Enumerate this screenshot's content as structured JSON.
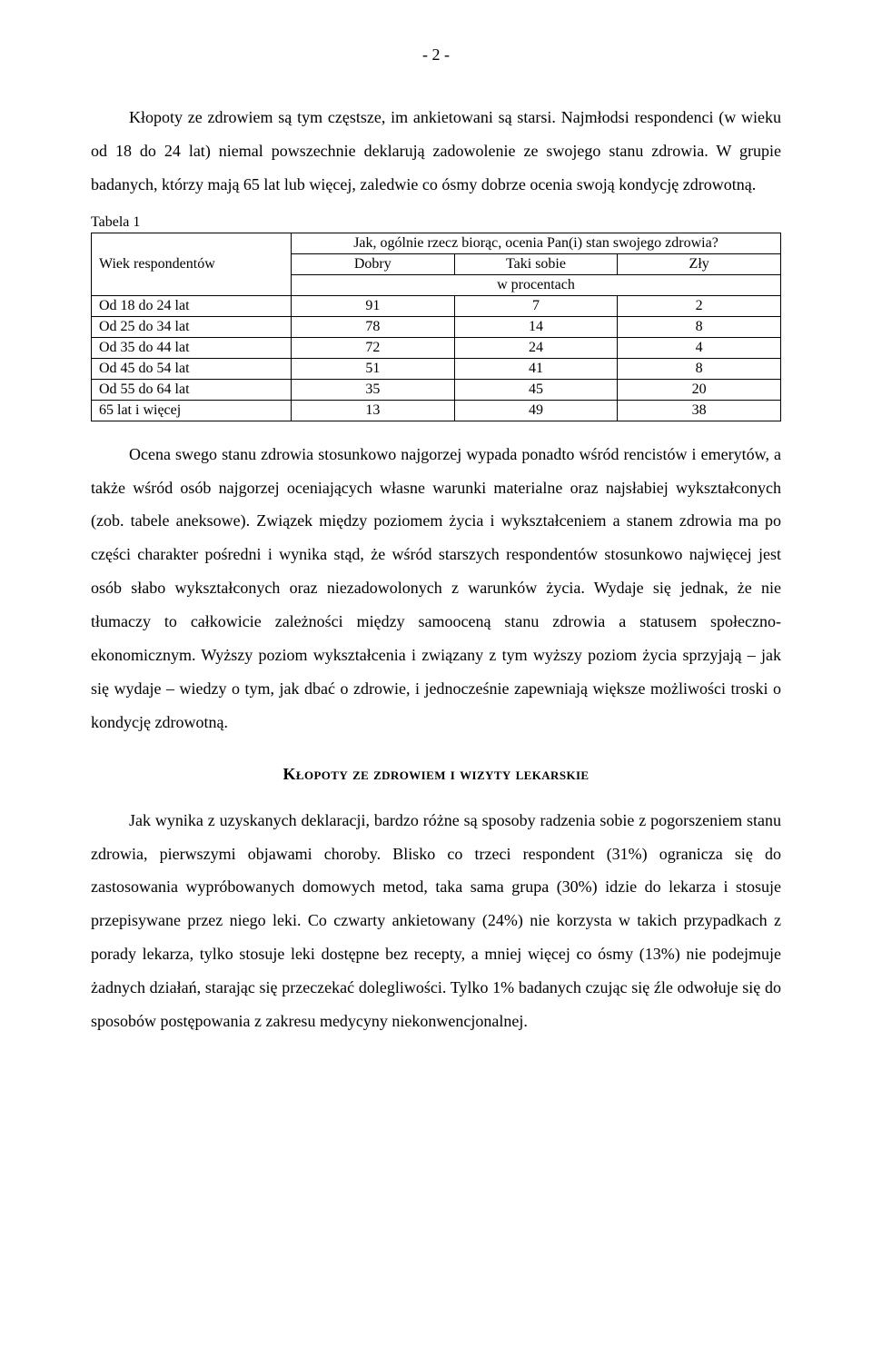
{
  "page_number": "- 2 -",
  "para1": "Kłopoty ze zdrowiem są tym częstsze, im ankietowani są starsi. Najmłodsi respondenci (w wieku od 18 do 24 lat) niemal powszechnie deklarują zadowolenie ze swojego stanu zdrowia. W grupie badanych, którzy mają 65 lat lub więcej, zaledwie co ósmy dobrze ocenia swoją kondycję zdrowotną.",
  "table": {
    "caption": "Tabela 1",
    "row_header": "Wiek respondentów",
    "top_header": "Jak, ogólnie rzecz biorąc, ocenia Pan(i) stan swojego zdrowia?",
    "cols": [
      "Dobry",
      "Taki sobie",
      "Zły"
    ],
    "subheader": "w procentach",
    "rows": [
      {
        "label": "Od 18 do 24 lat",
        "vals": [
          "91",
          "7",
          "2"
        ]
      },
      {
        "label": "Od 25 do 34 lat",
        "vals": [
          "78",
          "14",
          "8"
        ]
      },
      {
        "label": "Od 35 do 44 lat",
        "vals": [
          "72",
          "24",
          "4"
        ]
      },
      {
        "label": "Od 45 do 54 lat",
        "vals": [
          "51",
          "41",
          "8"
        ]
      },
      {
        "label": "Od 55 do 64 lat",
        "vals": [
          "35",
          "45",
          "20"
        ]
      },
      {
        "label": "65 lat i więcej",
        "vals": [
          "13",
          "49",
          "38"
        ]
      }
    ],
    "border_color": "#000000",
    "font_size_pt": 12
  },
  "para2": "Ocena swego stanu zdrowia stosunkowo najgorzej wypada ponadto wśród rencistów i emerytów, a także wśród osób najgorzej oceniających własne warunki materialne oraz najsłabiej wykształconych (zob. tabele aneksowe). Związek między poziomem życia i wykształceniem a stanem zdrowia ma po części charakter pośredni i wynika stąd, że wśród starszych respondentów stosunkowo najwięcej jest osób słabo wykształconych oraz niezadowolonych z warunków życia. Wydaje się jednak, że nie tłumaczy to całkowicie zależności między samooceną stanu zdrowia a statusem społeczno-ekonomicznym. Wyższy poziom wykształcenia i związany z tym wyższy poziom życia sprzyjają – jak się wydaje – wiedzy o tym, jak dbać o zdrowie, i jednocześnie zapewniają większe możliwości troski o kondycję zdrowotną.",
  "section_heading": "Kłopoty ze zdrowiem i wizyty lekarskie",
  "para3": "Jak wynika z uzyskanych deklaracji, bardzo różne są sposoby radzenia sobie z pogorszeniem stanu zdrowia, pierwszymi objawami choroby. Blisko co trzeci respondent (31%) ogranicza się do zastosowania wypróbowanych domowych metod, taka sama grupa (30%) idzie do lekarza i stosuje przepisywane przez niego leki. Co czwarty ankietowany (24%) nie korzysta w takich przypadkach z porady lekarza, tylko stosuje leki dostępne bez recepty, a mniej więcej co ósmy (13%) nie podejmuje żadnych działań, starając się przeczekać dolegliwości. Tylko 1% badanych czując się źle odwołuje się do sposobów postępowania z  zakresu medycyny niekonwencjonalnej."
}
